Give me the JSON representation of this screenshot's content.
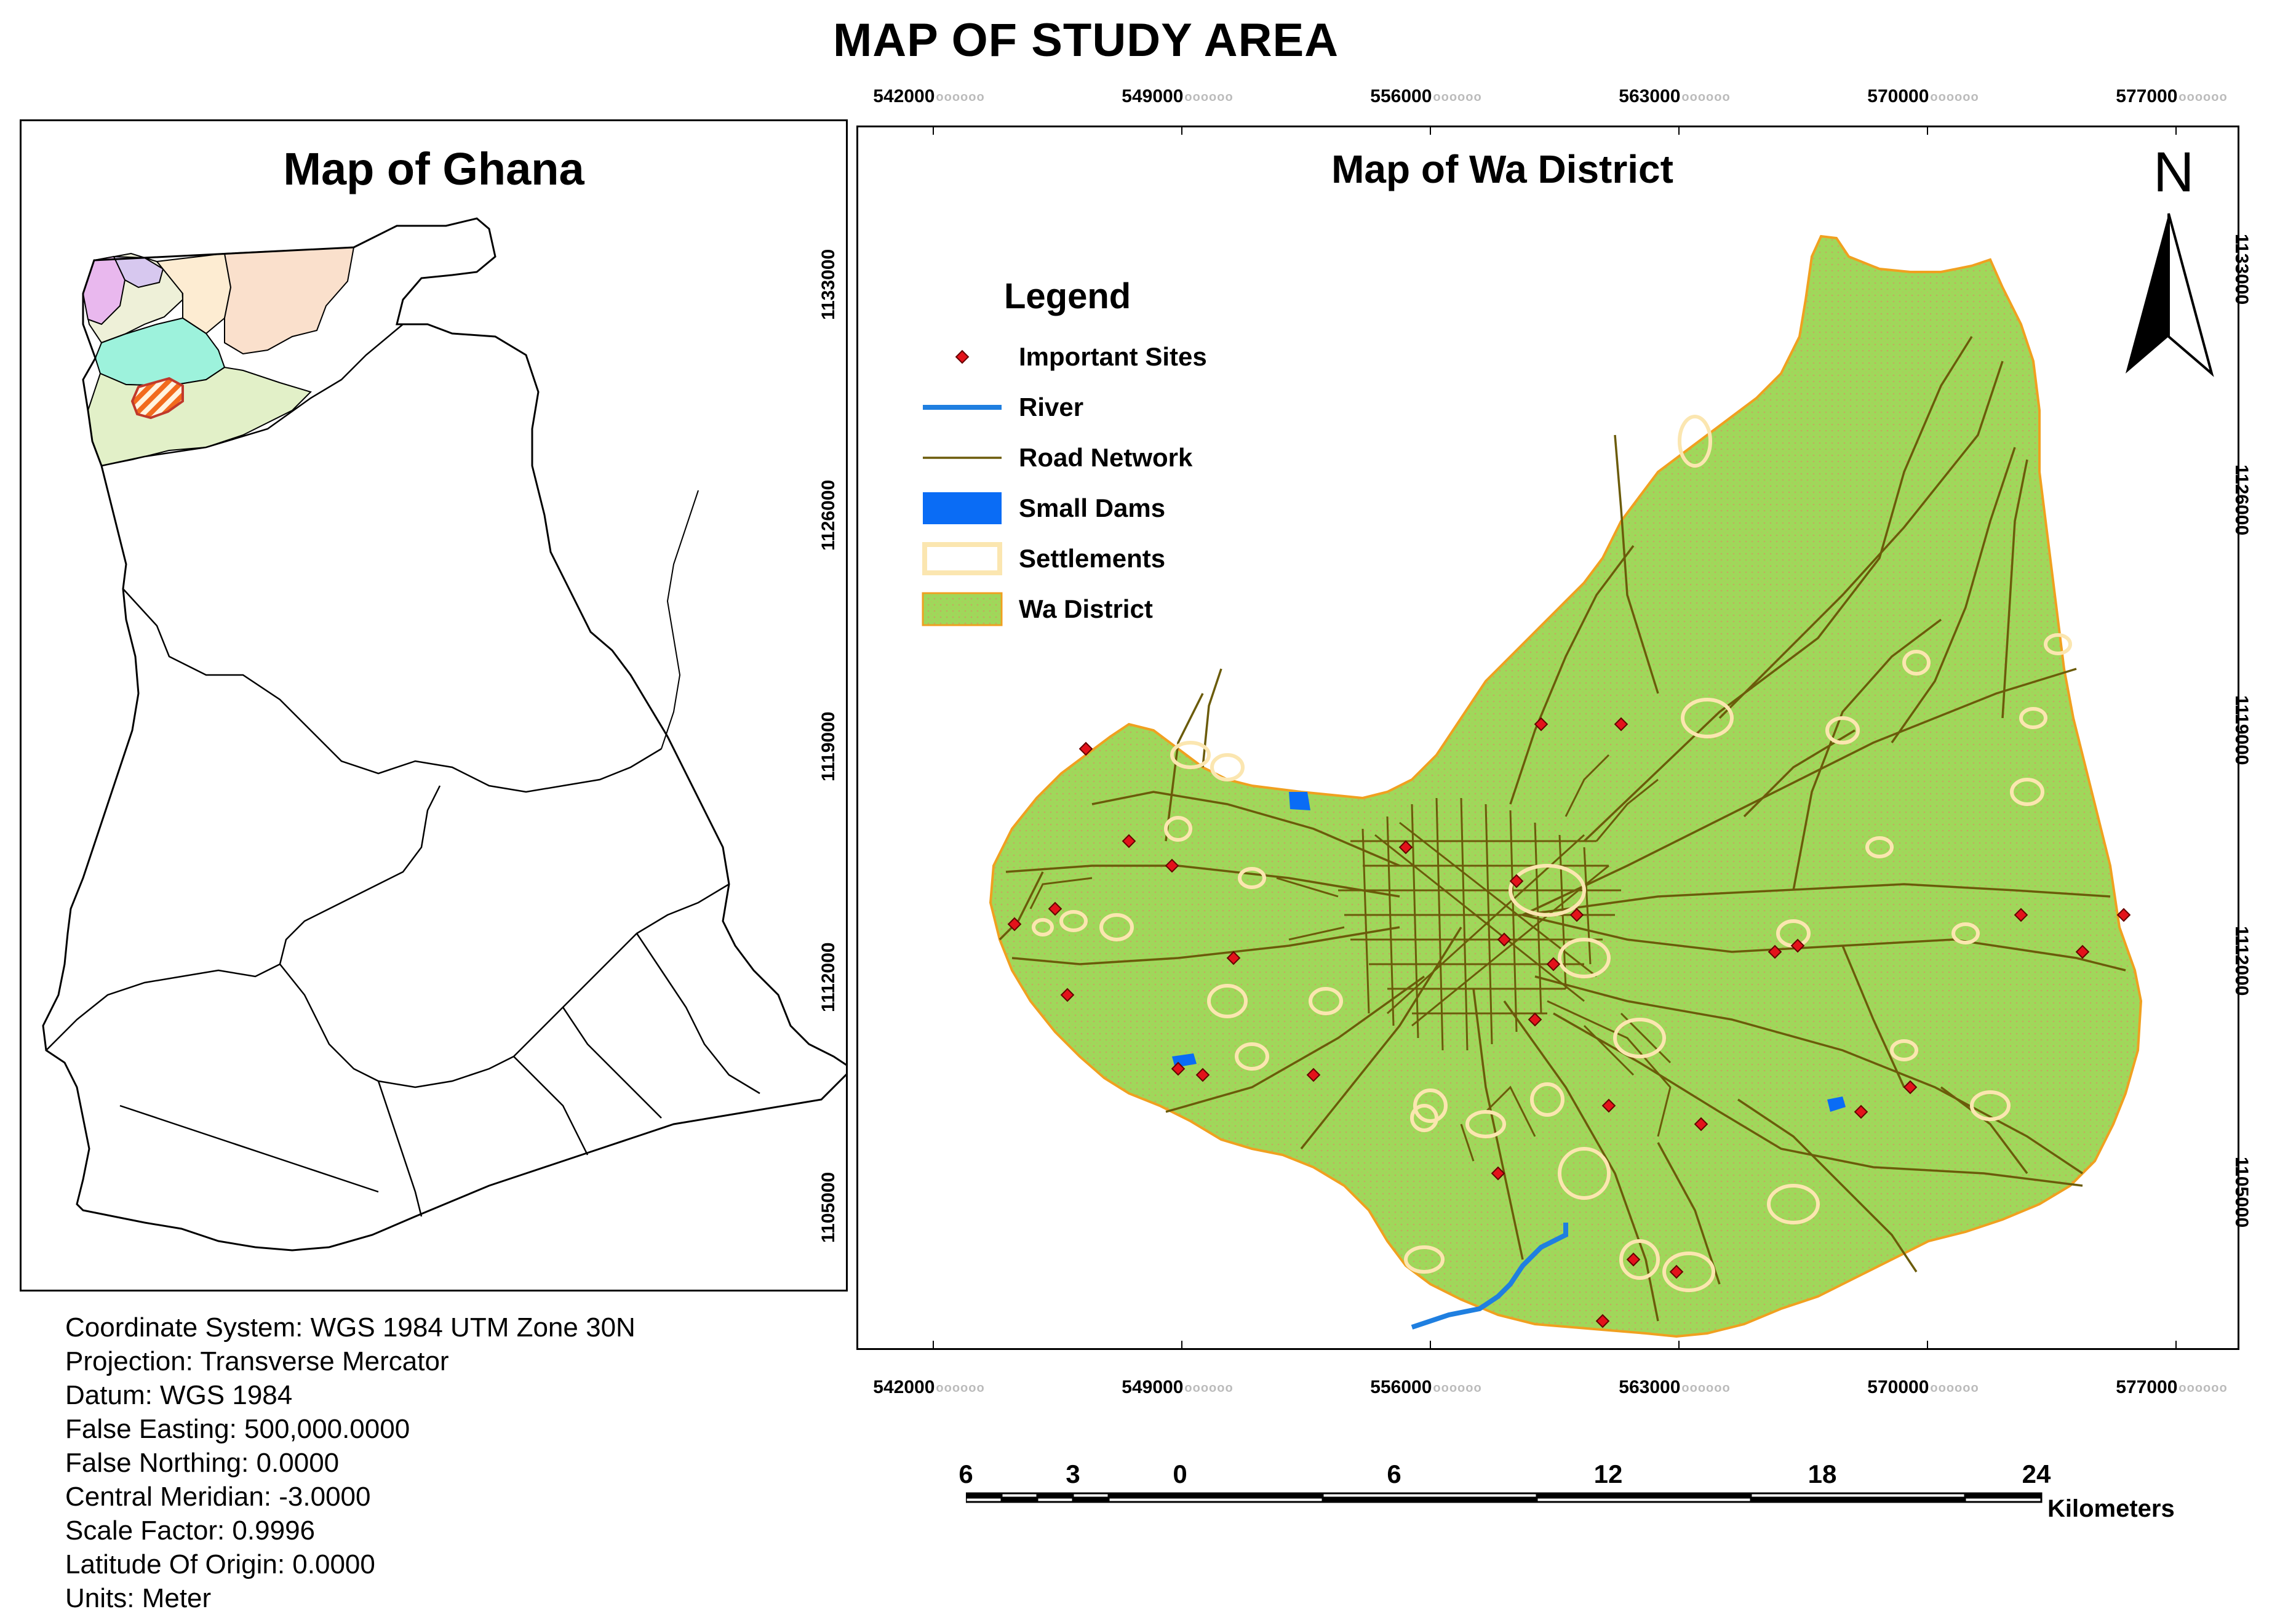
{
  "title": "MAP OF STUDY AREA",
  "ghana_map": {
    "title": "Map of Ghana"
  },
  "wa_map": {
    "title": "Map of Wa District"
  },
  "north_arrow": {
    "label": "N"
  },
  "grid": {
    "x_ticks": [
      "542000",
      "549000",
      "556000",
      "563000",
      "570000",
      "577000"
    ],
    "y_ticks": [
      "1133000",
      "1126000",
      "1119000",
      "1112000",
      "1105000"
    ]
  },
  "legend": {
    "title": "Legend",
    "items": [
      {
        "label": "Important Sites",
        "symbol": "diamond",
        "color": "#e3121b"
      },
      {
        "label": "River",
        "symbol": "line",
        "color": "#1f7fe0"
      },
      {
        "label": "Road Network",
        "symbol": "thin-line",
        "color": "#6b5b0a"
      },
      {
        "label": "Small Dams",
        "symbol": "fill",
        "color": "#0a6cf5"
      },
      {
        "label": "Settlements",
        "symbol": "outline",
        "color": "#fbe6b0"
      },
      {
        "label": "Wa District",
        "symbol": "fill",
        "color": "#9fd85a"
      }
    ]
  },
  "scale_bar": {
    "labels": [
      "6",
      "3",
      "0",
      "6",
      "12",
      "18",
      "24"
    ],
    "unit": "Kilometers"
  },
  "metadata": [
    "Coordinate System: WGS 1984 UTM Zone 30N",
    "Projection: Transverse Mercator",
    "Datum: WGS 1984",
    "False Easting: 500,000.0000",
    "False Northing: 0.0000",
    "Central Meridian: -3.0000",
    "Scale Factor: 0.9996",
    "Latitude Of Origin: 0.0000",
    "Units: Meter"
  ]
}
